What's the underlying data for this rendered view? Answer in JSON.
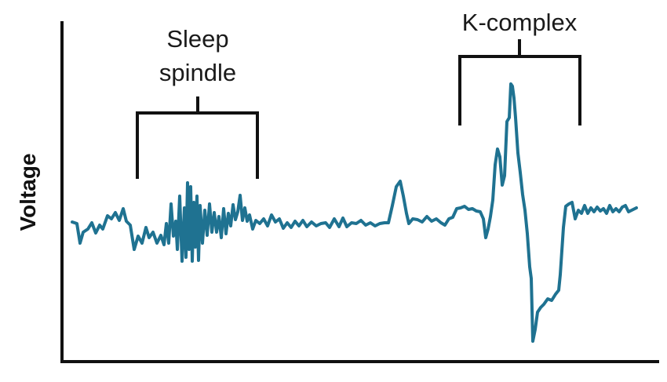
{
  "figure": {
    "y_axis_label": "Voltage",
    "annotations": [
      {
        "lines": [
          "Sleep",
          "spindle"
        ]
      },
      {
        "lines": [
          "K-complex"
        ]
      }
    ],
    "trace_color": "#1f7291",
    "axis_color": "#111111"
  }
}
